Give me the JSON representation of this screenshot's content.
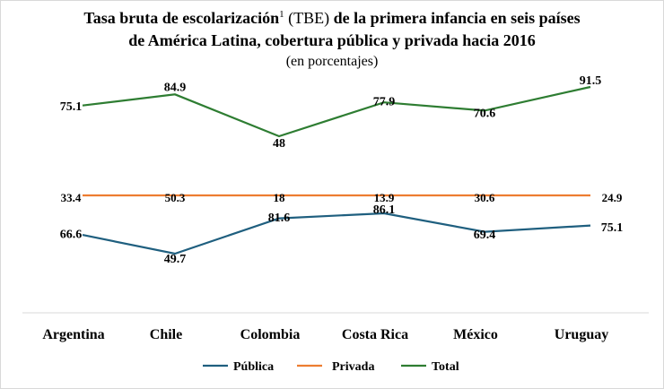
{
  "chart_data": {
    "type": "line",
    "title_part1": "Tasa bruta de escolarización",
    "title_sup": "1",
    "title_part2": " (TBE)",
    "title_part3": " de la primera infancia en seis países",
    "title_line2": "de América Latina, cobertura pública y privada hacia 2016",
    "subtitle": "(en porcentajes)",
    "categories": [
      "Argentina",
      "Chile",
      "Colombia",
      "Costa Rica",
      "México",
      "Uruguay"
    ],
    "series": [
      {
        "name": "Pública",
        "color": "#1f5f7f",
        "values": [
          66.6,
          49.7,
          81.6,
          86.1,
          69.4,
          75.1
        ],
        "labels": [
          "66.6",
          "49.7",
          "81.6",
          "86.1",
          "69.4",
          "75.1"
        ]
      },
      {
        "name": "Privada",
        "color": "#ed7d31",
        "values": [
          33.4,
          50.3,
          18,
          13.9,
          30.6,
          24.9
        ],
        "labels": [
          "33.4",
          "50.3",
          "18",
          "13.9",
          "30.6",
          "24.9"
        ]
      },
      {
        "name": "Total",
        "color": "#2e7d32",
        "values": [
          75.1,
          84.9,
          48,
          77.9,
          70.6,
          91.5
        ],
        "labels": [
          "75.1",
          "84.9",
          "48",
          "77.9",
          "70.6",
          "91.5"
        ]
      }
    ],
    "legend_position": "bottom",
    "grid": false
  }
}
